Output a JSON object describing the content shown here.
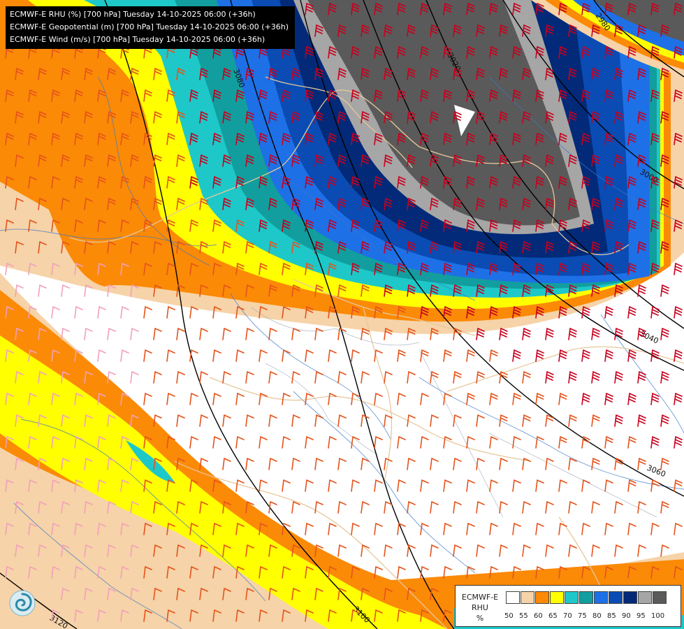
{
  "title_lines": [
    "ECMWF-E RHU (%) [700 hPa] Tuesday 14-10-2025 06:00 (+36h)",
    "ECMWF-E Geopotential (m) [700 hPa] Tuesday 14-10-2025 06:00 (+36h)",
    "ECMWF-E Wind (m/s) [700 hPa] Tuesday 14-10-2025 06:00 (+36h)"
  ],
  "legend": {
    "model": "ECMWF-E",
    "variable": "RHU",
    "unit": "%",
    "labels": [
      "50",
      "55",
      "60",
      "65",
      "70",
      "75",
      "80",
      "85",
      "90",
      "95",
      "100"
    ],
    "colors": [
      "#ffffff",
      "#f6d3a8",
      "#fb8a07",
      "#ffff00",
      "#1ec8c8",
      "#129e9e",
      "#1e70e6",
      "#0a4cb4",
      "#022a78",
      "#a6a6a6",
      "#5a5a5a"
    ]
  },
  "contour_labels": [
    "2980",
    "3000",
    "3020",
    "3040",
    "3060",
    "3080",
    "3100",
    "3120"
  ],
  "colors": {
    "barb_moderate": "#e5531b",
    "barb_strong": "#c8001e",
    "barb_light": "#f2a0bc",
    "rivers": "#3c78c8",
    "borders": "#e6c89b",
    "contours": "#000000"
  },
  "logo_icon": "ecmwf-swirl-logo"
}
